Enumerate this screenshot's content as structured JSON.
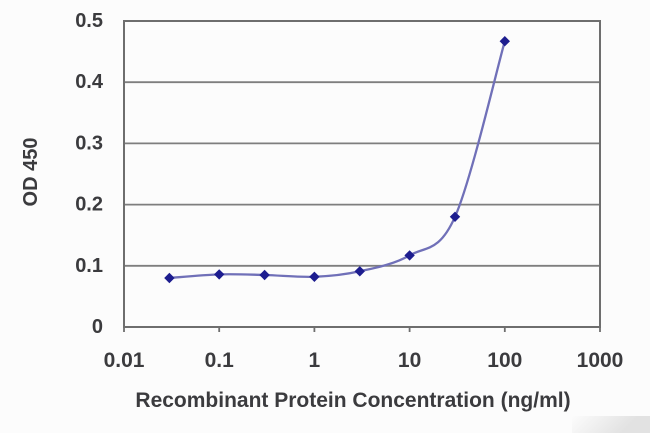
{
  "chart_data": {
    "type": "line",
    "title": "",
    "xlabel": "Recombinant Protein Concentration (ng/ml)",
    "ylabel": "OD 450",
    "x_scale": "log",
    "xlim": [
      0.01,
      1000
    ],
    "ylim": [
      0,
      0.5
    ],
    "grid": "horizontal",
    "legend": "none",
    "marker": "diamond",
    "x": [
      0.03,
      0.1,
      0.3,
      1,
      3,
      10,
      30,
      100
    ],
    "y": [
      0.08,
      0.086,
      0.085,
      0.082,
      0.091,
      0.117,
      0.18,
      0.467
    ],
    "x_ticks": [
      0.01,
      0.1,
      1,
      10,
      100,
      1000
    ],
    "x_tick_labels": [
      "0.01",
      "0.1",
      "1",
      "10",
      "100",
      "1000"
    ],
    "y_ticks": [
      0,
      0.1,
      0.2,
      0.3,
      0.4,
      0.5
    ],
    "y_tick_labels": [
      "0",
      "0.1",
      "0.2",
      "0.3",
      "0.4",
      "0.5"
    ],
    "colors": {
      "marker": "#1d1d8f",
      "line": "#7070b8",
      "grid": "#7e7e7e",
      "border": "#6e6e6e",
      "text": "#3b3b3e",
      "background": "#fcfcfc"
    }
  }
}
